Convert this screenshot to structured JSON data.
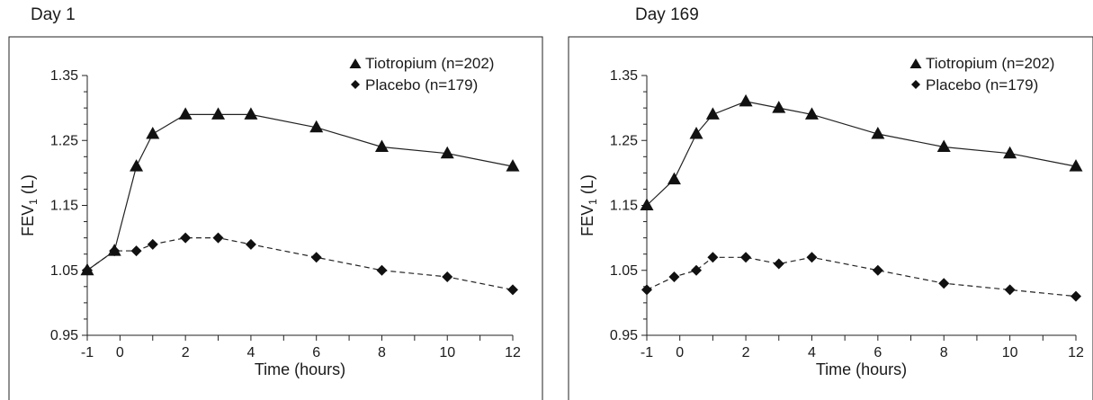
{
  "chart_data": [
    {
      "type": "line",
      "title": "Day 1",
      "xlabel": "Time (hours)",
      "ylabel": "FEV",
      "ylabel_sub": "1",
      "ylabel_unit": " (L)",
      "xlim": [
        -1,
        12
      ],
      "ylim": [
        0.95,
        1.35
      ],
      "x_ticks": [
        -1,
        0,
        2,
        4,
        6,
        8,
        10,
        12
      ],
      "x_tick_labels": [
        "-1",
        "0",
        "2",
        "4",
        "6",
        "8",
        "10",
        "12"
      ],
      "y_ticks": [
        0.95,
        1.05,
        1.15,
        1.25,
        1.35
      ],
      "y_tick_labels": [
        "0.95",
        "1.05",
        "1.15",
        "1.25",
        "1.35"
      ],
      "grid": false,
      "legend_position": "top-right",
      "series": [
        {
          "name": "Tiotropium (n=202)",
          "marker": "triangle",
          "line": "solid",
          "x": [
            -1,
            -0.17,
            0.5,
            1,
            2,
            3,
            4,
            6,
            8,
            10,
            12
          ],
          "y": [
            1.05,
            1.08,
            1.21,
            1.26,
            1.29,
            1.29,
            1.29,
            1.27,
            1.24,
            1.23,
            1.21
          ]
        },
        {
          "name": "Placebo (n=179)",
          "marker": "diamond",
          "line": "dashed",
          "x": [
            -1,
            -0.17,
            0.5,
            1,
            2,
            3,
            4,
            6,
            8,
            10,
            12
          ],
          "y": [
            1.05,
            1.08,
            1.08,
            1.09,
            1.1,
            1.1,
            1.09,
            1.07,
            1.05,
            1.04,
            1.02
          ]
        }
      ]
    },
    {
      "type": "line",
      "title": "Day 169",
      "xlabel": "Time (hours)",
      "ylabel": "FEV",
      "ylabel_sub": "1",
      "ylabel_unit": " (L)",
      "xlim": [
        -1,
        12
      ],
      "ylim": [
        0.95,
        1.35
      ],
      "x_ticks": [
        -1,
        0,
        2,
        4,
        6,
        8,
        10,
        12
      ],
      "x_tick_labels": [
        "-1",
        "0",
        "2",
        "4",
        "6",
        "8",
        "10",
        "12"
      ],
      "y_ticks": [
        0.95,
        1.05,
        1.15,
        1.25,
        1.35
      ],
      "y_tick_labels": [
        "0.95",
        "1.05",
        "1.15",
        "1.25",
        "1.35"
      ],
      "grid": false,
      "legend_position": "top-right",
      "series": [
        {
          "name": "Tiotropium (n=202)",
          "marker": "triangle",
          "line": "solid",
          "x": [
            -1,
            -0.17,
            0.5,
            1,
            2,
            3,
            4,
            6,
            8,
            10,
            12
          ],
          "y": [
            1.15,
            1.19,
            1.26,
            1.29,
            1.31,
            1.3,
            1.29,
            1.26,
            1.24,
            1.23,
            1.21
          ]
        },
        {
          "name": "Placebo (n=179)",
          "marker": "diamond",
          "line": "dashed",
          "x": [
            -1,
            -0.17,
            0.5,
            1,
            2,
            3,
            4,
            6,
            8,
            10,
            12
          ],
          "y": [
            1.02,
            1.04,
            1.05,
            1.07,
            1.07,
            1.06,
            1.07,
            1.05,
            1.03,
            1.02,
            1.01
          ]
        }
      ]
    }
  ]
}
